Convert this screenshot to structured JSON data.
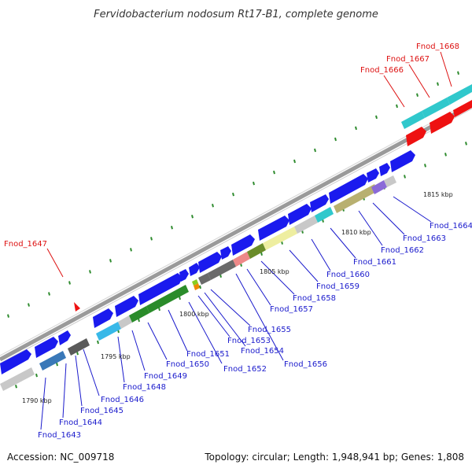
{
  "title": "Fervidobacterium nodosum Rt17-B1, complete genome",
  "footer": {
    "accession": "Accession: NC_009718",
    "summary": "Topology: circular; Length: 1,948,941 bp; Genes: 1,808"
  },
  "colors": {
    "backbone": "#999999",
    "tick": "#2e8b2e",
    "label_default": "#1a1acc",
    "label_highlight": "#dd1111",
    "gene_blue": "#1a1aee",
    "gene_cyan": "#30c8cc",
    "gene_red": "#ee1111"
  },
  "kbp_markers": [
    "1790 kbp",
    "1795 kbp",
    "1800 kbp",
    "1805 kbp",
    "1810 kbp",
    "1815 kbp"
  ],
  "gene_labels_upper": [
    "Fnod_1647",
    "Fnod_1666",
    "Fnod_1667",
    "Fnod_1668"
  ],
  "gene_labels_lower": [
    "Fnod_1643",
    "Fnod_1644",
    "Fnod_1645",
    "Fnod_1646",
    "Fnod_1648",
    "Fnod_1649",
    "Fnod_1650",
    "Fnod_1651",
    "Fnod_1652",
    "Fnod_1653",
    "Fnod_1654",
    "Fnod_1655",
    "Fnod_1656",
    "Fnod_1657",
    "Fnod_1658",
    "Fnod_1659",
    "Fnod_1660",
    "Fnod_1661",
    "Fnod_1662",
    "Fnod_1663",
    "Fnod_1664"
  ]
}
